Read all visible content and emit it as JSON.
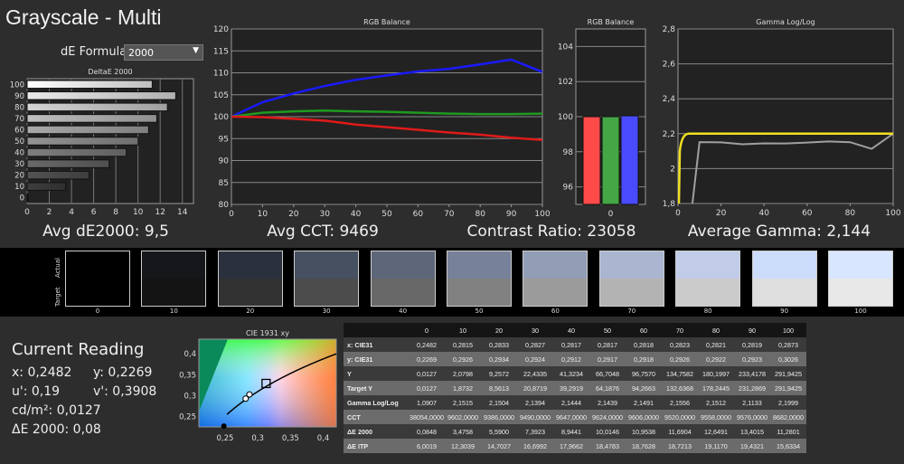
{
  "title": "Grayscale - Multi",
  "de_formula": {
    "label": "dE Formula:",
    "value": "2000"
  },
  "summaries": {
    "avg_de": "Avg dE2000: 9,5",
    "avg_cct": "Avg CCT: 9469",
    "contrast": "Contrast Ratio: 23058",
    "avg_gamma": "Average Gamma: 2,144"
  },
  "chart_data": [
    {
      "type": "bar",
      "title": "DeltaE 2000",
      "orientation": "horizontal",
      "categories": [
        "0",
        "10",
        "20",
        "30",
        "40",
        "50",
        "60",
        "70",
        "80",
        "90",
        "100"
      ],
      "values": [
        0.0848,
        3.4758,
        5.59,
        7.3923,
        8.9441,
        10.0146,
        10.9538,
        11.6904,
        12.6491,
        13.4015,
        11.2801
      ],
      "xlim": [
        0,
        15
      ],
      "xticks": [
        "0",
        "2",
        "4",
        "6",
        "8",
        "10",
        "12",
        "14"
      ]
    },
    {
      "type": "line",
      "title": "RGB Balance",
      "x": [
        0,
        10,
        20,
        30,
        40,
        50,
        60,
        70,
        80,
        90,
        100
      ],
      "series": [
        {
          "name": "Blue",
          "color": "#1a1aff",
          "values": [
            100,
            103.3,
            105.3,
            107,
            108.4,
            109.4,
            110.3,
            110.9,
            111.9,
            113,
            110.2
          ]
        },
        {
          "name": "Green",
          "color": "#1f9a1f",
          "values": [
            100,
            100.9,
            101.2,
            101.4,
            101.2,
            101.1,
            100.9,
            100.7,
            100.6,
            100.6,
            100.7
          ]
        },
        {
          "name": "Red",
          "color": "#e01a1a",
          "values": [
            100,
            99.9,
            99.5,
            99.1,
            98.2,
            97.6,
            97.0,
            96.4,
            95.9,
            95.2,
            94.7
          ]
        }
      ],
      "ylim": [
        80,
        120
      ],
      "yticks": [
        "80",
        "85",
        "90",
        "95",
        "100",
        "105",
        "110",
        "115",
        "120"
      ],
      "xticks": [
        "0",
        "10",
        "20",
        "30",
        "40",
        "50",
        "60",
        "70",
        "80",
        "90",
        "100"
      ]
    },
    {
      "type": "bar",
      "title": "RGB Balance",
      "categories": [
        "0"
      ],
      "series": [
        {
          "name": "Red",
          "color": "#ff4a4a",
          "values": [
            100
          ]
        },
        {
          "name": "Green",
          "color": "#44a644",
          "values": [
            100
          ]
        },
        {
          "name": "Blue",
          "color": "#4a4aff",
          "values": [
            100.05
          ]
        }
      ],
      "ylim": [
        95,
        105
      ],
      "yticks": [
        "96",
        "98",
        "100",
        "102",
        "104"
      ]
    },
    {
      "type": "line",
      "title": "Gamma Log/Log",
      "x": [
        0,
        10,
        20,
        30,
        40,
        50,
        60,
        70,
        80,
        90,
        100
      ],
      "series": [
        {
          "name": "Measured",
          "color": "#a0a0a0",
          "values": [
            1.0907,
            2.1515,
            2.1504,
            2.1394,
            2.1444,
            2.1439,
            2.1491,
            2.1556,
            2.1512,
            2.1133,
            2.1999
          ]
        },
        {
          "name": "Target",
          "color": "#f0e020",
          "values": [
            2.2,
            2.2,
            2.2,
            2.2,
            2.2,
            2.2,
            2.2,
            2.2,
            2.2,
            2.2,
            2.2
          ]
        }
      ],
      "ylim": [
        1.8,
        2.8
      ],
      "yticks": [
        "1,8",
        "2",
        "2,2",
        "2,4",
        "2,6",
        "2,8"
      ],
      "xticks": [
        "0",
        "20",
        "40",
        "60",
        "80",
        "100"
      ]
    },
    {
      "type": "scatter",
      "title": "CIE 1931 xy",
      "xlim": [
        0.21,
        0.42
      ],
      "ylim": [
        0.225,
        0.435
      ],
      "xticks": [
        "0,25",
        "0,3",
        "0,35",
        "0,4"
      ],
      "yticks": [
        "0,25",
        "0,3",
        "0,35",
        "0,4"
      ],
      "points": [
        {
          "name": "current",
          "x": 0.2482,
          "y": 0.2269
        },
        {
          "name": "measured",
          "x": 0.2815,
          "y": 0.2926
        },
        {
          "name": "measured",
          "x": 0.2873,
          "y": 0.3026
        }
      ],
      "target": {
        "x": 0.3127,
        "y": 0.329
      }
    }
  ],
  "swatches": {
    "labels": [
      "0",
      "10",
      "20",
      "30",
      "40",
      "50",
      "60",
      "70",
      "80",
      "90",
      "100"
    ],
    "row_labels": [
      "Actual",
      "Target"
    ],
    "actual": [
      "#000000",
      "#15171b",
      "#2b313c",
      "#475060",
      "#5e6679",
      "#78819a",
      "#929db6",
      "#aab6d0",
      "#c0cce8",
      "#ccdcfb",
      "#d8e6ff"
    ],
    "target": [
      "#000000",
      "#141414",
      "#323232",
      "#4c4c4c",
      "#686868",
      "#818181",
      "#9b9b9b",
      "#b3b3b3",
      "#cbcbcb",
      "#dedede",
      "#e8e8e8"
    ]
  },
  "current_reading": {
    "title": "Current Reading",
    "x": "x: 0,2482",
    "y": "y: 0,2269",
    "u": "u': 0,19",
    "v": "v': 0,3908",
    "cd": "cd/m²: 0,0127",
    "de": "ΔE 2000: 0,08"
  },
  "table": {
    "columns": [
      "0",
      "10",
      "20",
      "30",
      "40",
      "50",
      "60",
      "70",
      "80",
      "90",
      "100"
    ],
    "rows": [
      {
        "label": "x: CIE31",
        "values": [
          "0,2482",
          "0,2815",
          "0,2833",
          "0,2827",
          "0,2817",
          "0,2817",
          "0,2818",
          "0,2823",
          "0,2821",
          "0,2819",
          "0,2873"
        ]
      },
      {
        "label": "y: CIE31",
        "values": [
          "0,2269",
          "0,2926",
          "0,2934",
          "0,2924",
          "0,2912",
          "0,2917",
          "0,2918",
          "0,2926",
          "0,2922",
          "0,2923",
          "0,3026"
        ]
      },
      {
        "label": "Y",
        "values": [
          "0,0127",
          "2,0798",
          "9,2572",
          "22,4335",
          "41,3234",
          "66,7048",
          "96,7570",
          "134,7582",
          "180,1997",
          "233,4178",
          "291,9425"
        ]
      },
      {
        "label": "Target Y",
        "values": [
          "0,0127",
          "1,8732",
          "8,5613",
          "20,8719",
          "39,2919",
          "64,1876",
          "94,2663",
          "132,6368",
          "178,2445",
          "231,2869",
          "291,9425"
        ]
      },
      {
        "label": "Gamma Log/Log",
        "values": [
          "1,0907",
          "2,1515",
          "2,1504",
          "2,1394",
          "2,1444",
          "2,1439",
          "2,1491",
          "2,1556",
          "2,1512",
          "2,1133",
          "2,1999"
        ]
      },
      {
        "label": "CCT",
        "values": [
          "38054,0000",
          "9602,0000",
          "9386,0000",
          "9490,0000",
          "9647,0000",
          "9624,0000",
          "9606,0000",
          "9520,0000",
          "9558,0000",
          "9576,0000",
          "8682,0000"
        ]
      },
      {
        "label": "ΔE 2000",
        "values": [
          "0,0848",
          "3,4758",
          "5,5900",
          "7,3923",
          "8,9441",
          "10,0146",
          "10,9538",
          "11,6904",
          "12,6491",
          "13,4015",
          "11,2801"
        ]
      },
      {
        "label": "ΔE ITP",
        "values": [
          "6,0019",
          "12,3039",
          "14,7027",
          "16,6992",
          "17,9662",
          "18,4783",
          "18,7628",
          "18,7213",
          "19,1170",
          "19,4321",
          "15,6334"
        ]
      }
    ]
  }
}
